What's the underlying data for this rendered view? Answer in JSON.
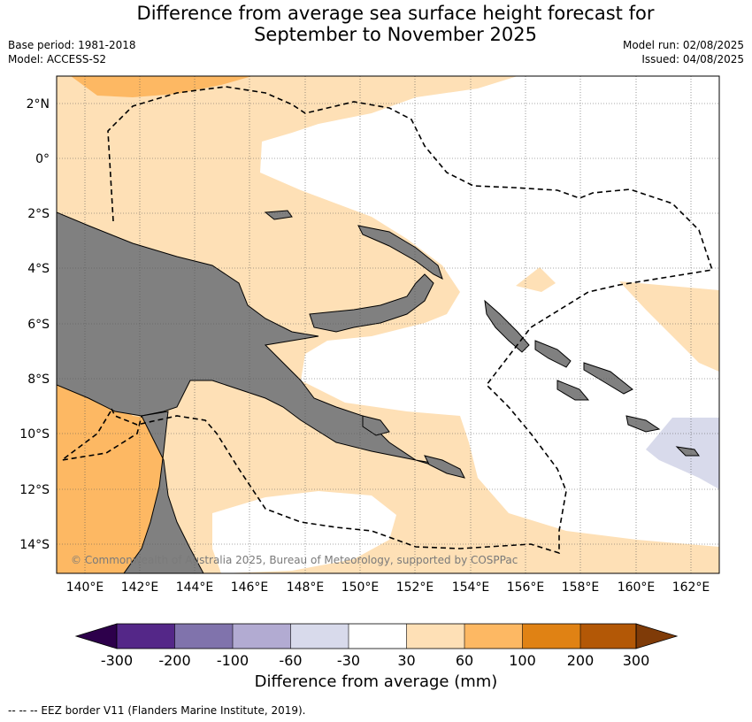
{
  "header": {
    "title_line1": "Difference from average sea surface height forecast for",
    "title_line2": "September to November 2025",
    "base_period": "Base period: 1981-2018",
    "model": "Model: ACCESS-S2",
    "model_run": "Model run: 02/08/2025",
    "issued": "Issued: 04/08/2025"
  },
  "map": {
    "lat_labels": [
      "2°N",
      "0°",
      "2°S",
      "4°S",
      "6°S",
      "8°S",
      "10°S",
      "12°S",
      "14°S"
    ],
    "lon_labels": [
      "140°E",
      "142°E",
      "144°E",
      "146°E",
      "148°E",
      "150°E",
      "152°E",
      "154°E",
      "156°E",
      "158°E",
      "160°E",
      "162°E"
    ],
    "copyright": "© Commonwealth of Australia 2025, Bureau of Meteorology, supported by COSPPac",
    "colors": {
      "land": "#808080",
      "band_30_60": "#fee0b6",
      "band_60_100": "#fdb863",
      "band_neg60_neg30": "#d8daeb",
      "ocean_neutral": "#ffffff"
    }
  },
  "colorbar": {
    "labels": [
      "-300",
      "-200",
      "-100",
      "-60",
      "-30",
      "30",
      "60",
      "100",
      "200",
      "300"
    ],
    "colors": [
      "#2d004b",
      "#542788",
      "#8073ac",
      "#b2abd2",
      "#d8daeb",
      "#ffffff",
      "#fee0b6",
      "#fdb863",
      "#e08214",
      "#b35806",
      "#7f3b08"
    ],
    "title": "Difference from average (mm)"
  },
  "footnote": "--  --  -- EEZ border V11 (Flanders Marine Institute, 2019)."
}
